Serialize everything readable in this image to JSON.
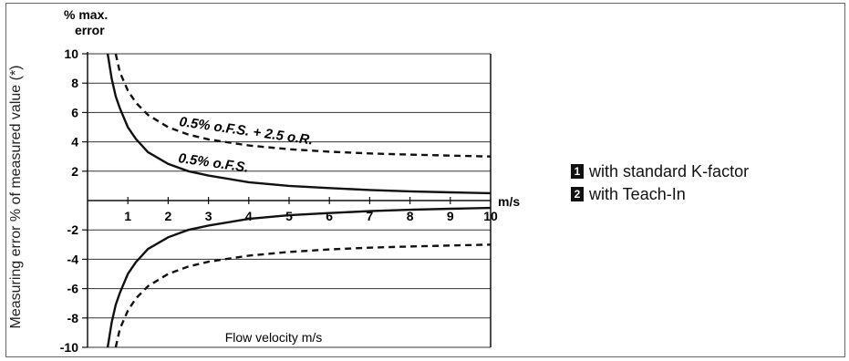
{
  "chart_data": {
    "type": "line",
    "ylabel_top": "% max.",
    "ylabel_top2": "error",
    "ylabel": "Measuring error % of measured value (*)",
    "xunit": "m/s",
    "xlabel": "Flow velocity m/s",
    "xlim": [
      0,
      10
    ],
    "ylim": [
      -10,
      10
    ],
    "x_ticks": [
      "1",
      "2",
      "3",
      "4",
      "5",
      "6",
      "7",
      "8",
      "9",
      "10"
    ],
    "y_ticks": [
      "10",
      "8",
      "6",
      "4",
      "2",
      "-2",
      "-4",
      "-6",
      "-8",
      "-10"
    ],
    "grid": true,
    "annotations": [
      {
        "text": "0.5% o.F.S. + 2.5 o.R."
      },
      {
        "text": "0.5% o.F.S."
      }
    ],
    "series": [
      {
        "style": "solid",
        "x": [
          0.5,
          0.6,
          0.7,
          0.8,
          1,
          1.2,
          1.5,
          2,
          2.5,
          3,
          4,
          5,
          6,
          7,
          8,
          9,
          10
        ],
        "y": [
          10,
          8.3,
          7.1,
          6.3,
          5,
          4.2,
          3.3,
          2.5,
          2,
          1.7,
          1.25,
          1,
          0.85,
          0.72,
          0.63,
          0.56,
          0.5
        ]
      },
      {
        "style": "dashed",
        "x": [
          0.7,
          0.8,
          1,
          1.2,
          1.5,
          2,
          2.5,
          3,
          4,
          5,
          6,
          7,
          8,
          9,
          10
        ],
        "y": [
          10,
          8.75,
          7.5,
          6.67,
          5.83,
          5,
          4.5,
          4.17,
          3.75,
          3.5,
          3.33,
          3.21,
          3.13,
          3.06,
          3
        ]
      },
      {
        "style": "solid",
        "x": [
          0.5,
          0.6,
          0.7,
          0.8,
          1,
          1.2,
          1.5,
          2,
          2.5,
          3,
          4,
          5,
          6,
          7,
          8,
          9,
          10
        ],
        "y": [
          -10,
          -8.3,
          -7.1,
          -6.3,
          -5,
          -4.2,
          -3.3,
          -2.5,
          -2,
          -1.7,
          -1.25,
          -1,
          -0.85,
          -0.72,
          -0.63,
          -0.56,
          -0.5
        ]
      },
      {
        "style": "dashed",
        "x": [
          0.7,
          0.8,
          1,
          1.2,
          1.5,
          2,
          2.5,
          3,
          4,
          5,
          6,
          7,
          8,
          9,
          10
        ],
        "y": [
          -10,
          -8.75,
          -7.5,
          -6.67,
          -5.83,
          -5,
          -4.5,
          -4.17,
          -3.75,
          -3.5,
          -3.33,
          -3.21,
          -3.13,
          -3.06,
          -3
        ]
      }
    ],
    "legend": {
      "position": "right",
      "items": [
        {
          "num": "1",
          "label": "with standard K-factor"
        },
        {
          "num": "2",
          "label": "with Teach-In"
        }
      ]
    }
  }
}
